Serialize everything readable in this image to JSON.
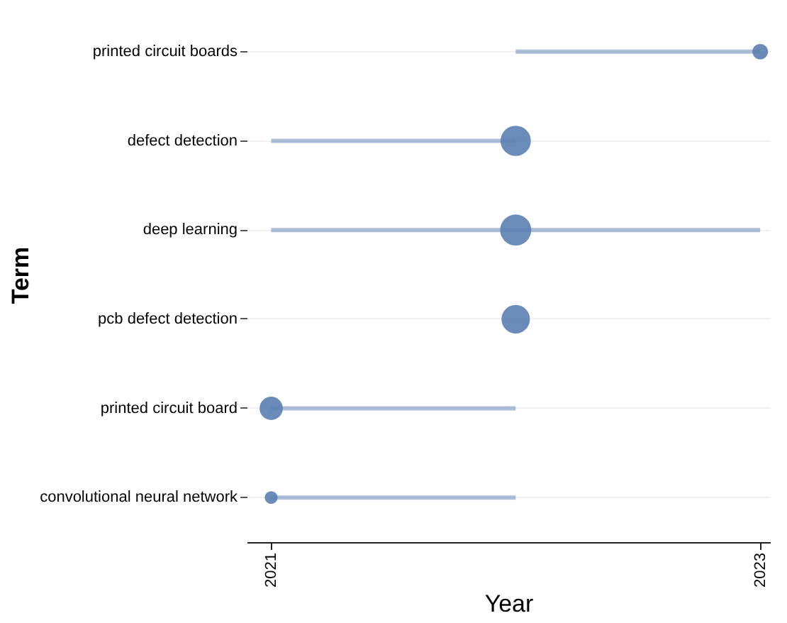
{
  "chart_data": {
    "type": "bubble",
    "orientation": "horizontal",
    "xlabel": "Year",
    "ylabel": "Term",
    "categories": [
      "printed circuit boards",
      "defect detection",
      "deep learning",
      "pcb defect detection",
      "printed circuit board",
      "convolutional neural network"
    ],
    "series": [
      {
        "color": "#5b7fb1",
        "values": [
          2023,
          2022,
          2022,
          2022,
          2021,
          2021
        ],
        "errors": [
          [
            2022,
            2023
          ],
          [
            2021,
            2022
          ],
          [
            2021,
            2023
          ],
          null,
          [
            2021,
            2022
          ],
          [
            2021,
            2022
          ]
        ],
        "sizes": [
          0.25,
          0.95,
          1,
          0.84,
          0.56,
          0.17
        ]
      }
    ],
    "xlim": [
      2020.9,
      2023.04
    ],
    "xticks": [
      2021,
      2023
    ],
    "grid": "y"
  }
}
